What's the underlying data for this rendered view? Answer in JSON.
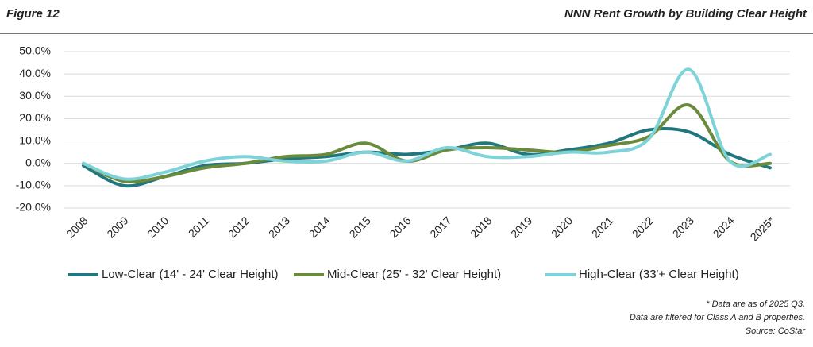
{
  "chart_data": {
    "type": "line",
    "figure_label": "Figure 12",
    "title": "NNN Rent Growth by Building Clear Height",
    "categories": [
      "2008",
      "2009",
      "2010",
      "2011",
      "2012",
      "2013",
      "2014",
      "2015",
      "2016",
      "2017",
      "2018",
      "2019",
      "2020",
      "2021",
      "2022",
      "2023",
      "2024",
      "2025*"
    ],
    "series": [
      {
        "name": "Low-Clear (14' - 24' Clear Height)",
        "color": "#21777e",
        "values": [
          -1,
          -10,
          -6,
          -1,
          0,
          2,
          3,
          5,
          4,
          6,
          9,
          4,
          6,
          9,
          15,
          14,
          4,
          -2
        ]
      },
      {
        "name": "Mid-Clear (25' - 32' Clear Height)",
        "color": "#6b8b3c",
        "values": [
          0,
          -8,
          -6,
          -2,
          0,
          3,
          4,
          9,
          1,
          6,
          7,
          6,
          5,
          8,
          12,
          26,
          1,
          0
        ]
      },
      {
        "name": "High-Clear (33'+ Clear Height)",
        "color": "#7dd3d8",
        "values": [
          0,
          -7,
          -4,
          1,
          3,
          1,
          1,
          5,
          1,
          7,
          3,
          3,
          5,
          5,
          11,
          42,
          1,
          4
        ]
      }
    ],
    "ylim": [
      -20,
      50
    ],
    "yticks": [
      {
        "value": -20,
        "label": "-20.0%"
      },
      {
        "value": -10,
        "label": "-10.0%"
      },
      {
        "value": 0,
        "label": "0.0%"
      },
      {
        "value": 10,
        "label": "10.0%"
      },
      {
        "value": 20,
        "label": "20.0%"
      },
      {
        "value": 30,
        "label": "30.0%"
      },
      {
        "value": 40,
        "label": "40.0%"
      },
      {
        "value": 50,
        "label": "50.0%"
      }
    ],
    "grid": true,
    "legend": "bottom",
    "notes": [
      "* Data are as of 2025 Q3.",
      "Data are filtered for Class A and B properties.",
      "Source: CoStar"
    ]
  }
}
